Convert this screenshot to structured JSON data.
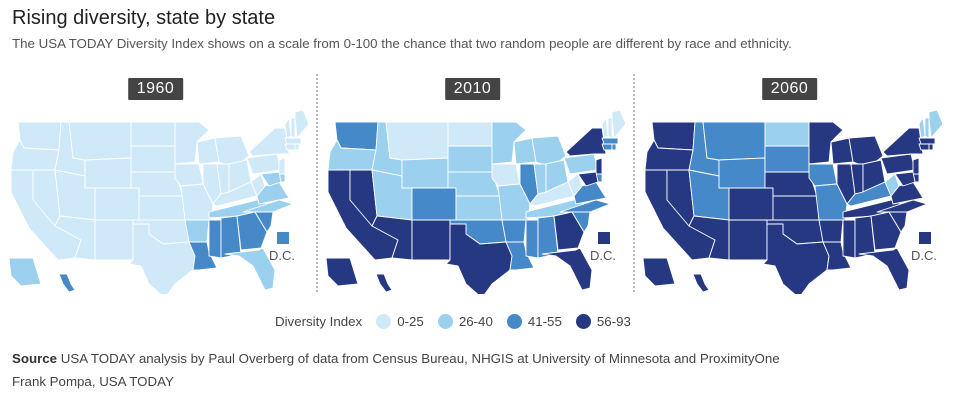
{
  "title": "Rising diversity, state by state",
  "subtitle": "The USA TODAY Diversity Index shows on a scale from 0-100 the chance that two random people are different by race and ethnicity.",
  "panels": [
    {
      "year": "1960",
      "dc_label": "D.C.",
      "dc_bin": 2
    },
    {
      "year": "2010",
      "dc_label": "D.C.",
      "dc_bin": 3
    },
    {
      "year": "2060",
      "dc_label": "D.C.",
      "dc_bin": 3
    }
  ],
  "legend": {
    "title": "Diversity Index",
    "items": [
      {
        "label": "0-25",
        "color": "#cfe9f8"
      },
      {
        "label": "26-40",
        "color": "#9bd0ef"
      },
      {
        "label": "41-55",
        "color": "#4589c9"
      },
      {
        "label": "56-93",
        "color": "#273883"
      }
    ]
  },
  "source": {
    "label": "Source",
    "text": "USA TODAY analysis by Paul Overberg of data from Census Bureau, NHGIS at University of Minnesota and ProximityOne"
  },
  "credit": "Frank Pompa, USA TODAY"
}
